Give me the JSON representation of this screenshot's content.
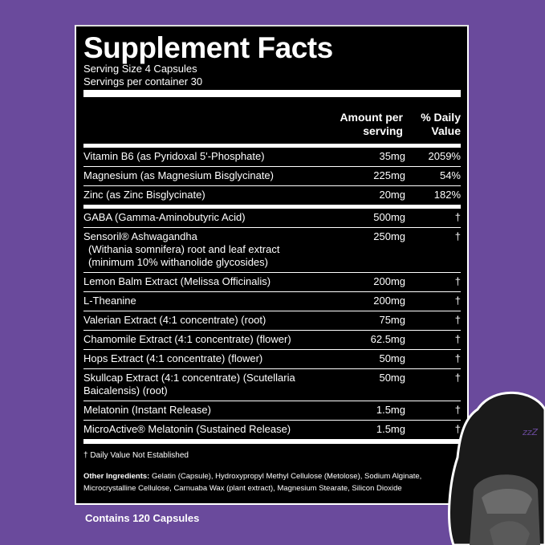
{
  "title": "Supplement Facts",
  "serving_size": "Serving Size 4 Capsules",
  "servings_per_container": "Servings per container 30",
  "header": {
    "amount": [
      "Amount per",
      "serving"
    ],
    "dv": [
      "% Daily",
      "Value"
    ]
  },
  "groups": [
    [
      {
        "name": "Vitamin B6 (as Pyridoxal 5'-Phosphate)",
        "amount": "35mg",
        "dv": "2059%"
      },
      {
        "name": "Magnesium (as Magnesium Bisglycinate)",
        "amount": "225mg",
        "dv": "54%"
      },
      {
        "name": "Zinc (as Zinc Bisglycinate)",
        "amount": "20mg",
        "dv": "182%"
      }
    ],
    [
      {
        "name": "GABA (Gamma-Aminobutyric Acid)",
        "amount": "500mg",
        "dv": "†"
      },
      {
        "name": "Sensoril® Ashwagandha",
        "sub": [
          "(Withania somnifera) root and leaf extract",
          "(minimum 10% withanolide glycosides)"
        ],
        "amount": "250mg",
        "dv": "†"
      },
      {
        "name": "Lemon Balm Extract (Melissa Officinalis)",
        "amount": "200mg",
        "dv": "†"
      },
      {
        "name": "L-Theanine",
        "amount": "200mg",
        "dv": "†"
      },
      {
        "name": "Valerian Extract (4:1 concentrate) (root)",
        "amount": "75mg",
        "dv": "†"
      },
      {
        "name": "Chamomile Extract (4:1 concentrate) (flower)",
        "amount": "62.5mg",
        "dv": "†"
      },
      {
        "name": "Hops Extract (4:1 concentrate) (flower)",
        "amount": "50mg",
        "dv": "†"
      },
      {
        "name": "Skullcap Extract (4:1 concentrate) (Scutellaria",
        "sub": [
          "Baicalensis) (root)"
        ],
        "amount": "50mg",
        "dv": "†"
      },
      {
        "name": "Melatonin (Instant Release)",
        "amount": "1.5mg",
        "dv": "†"
      },
      {
        "name": "MicroActive® Melatonin (Sustained Release)",
        "amount": "1.5mg",
        "dv": "†"
      }
    ]
  ],
  "footnote": "† Daily Value Not Established",
  "other_ingredients": {
    "label": "Other Ingredients:",
    "text": " Gelatin (Capsule), Hydroxypropyl Methyl Cellulose (Metolose), Sodium Alginate, Microcrystalline Cellulose, Carnuaba Wax (plant extract), Magnesium Stearate, Silicon Dioxide"
  },
  "contains": "Contains 120 Capsules",
  "colors": {
    "background": "#6a4a9c",
    "panel": "#000000",
    "text": "#ffffff",
    "moon": "#6a4a9c"
  },
  "mascot_icon": "sleeping-gorilla-with-moon-zzz"
}
